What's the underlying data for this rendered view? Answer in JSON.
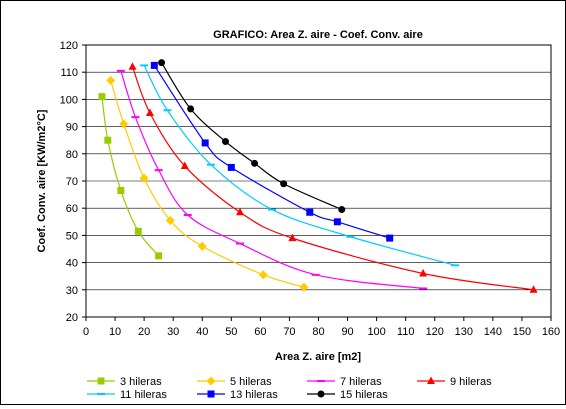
{
  "chart_data": {
    "type": "scatter",
    "title": "GRAFICO: Area Z. aire - Coef. Conv. aire",
    "xlabel": "Area Z. aire [m2]",
    "ylabel": "Coef. Conv. aire [KW/m2°C]",
    "xlim": [
      0,
      160
    ],
    "ylim": [
      20,
      120
    ],
    "xticks": [
      0,
      10,
      20,
      30,
      40,
      50,
      60,
      70,
      80,
      90,
      100,
      110,
      120,
      130,
      140,
      150,
      160
    ],
    "yticks": [
      20,
      30,
      40,
      50,
      60,
      70,
      80,
      90,
      100,
      110,
      120
    ],
    "grid": "horizontal",
    "legend_position": "bottom",
    "series": [
      {
        "name": "3 hileras",
        "color": "#99cc00",
        "marker": "square",
        "points": [
          [
            5.5,
            101
          ],
          [
            7.5,
            85
          ],
          [
            12,
            66.5
          ],
          [
            18,
            51.5
          ],
          [
            25,
            42.5
          ]
        ]
      },
      {
        "name": "5 hileras",
        "color": "#ffcc00",
        "marker": "diamond",
        "points": [
          [
            8.5,
            107
          ],
          [
            13,
            91
          ],
          [
            20,
            71
          ],
          [
            29,
            55.5
          ],
          [
            40,
            46
          ],
          [
            61,
            35.5
          ],
          [
            75,
            31
          ]
        ]
      },
      {
        "name": "7 hileras",
        "color": "#ff00ff",
        "marker": "dash",
        "points": [
          [
            12,
            110.5
          ],
          [
            17,
            93.5
          ],
          [
            25,
            74
          ],
          [
            35,
            57.5
          ],
          [
            53,
            47
          ],
          [
            79,
            35.5
          ],
          [
            116,
            30.5
          ]
        ]
      },
      {
        "name": "9 hileras",
        "color": "#ff0000",
        "marker": "triangle",
        "points": [
          [
            16,
            112
          ],
          [
            22,
            95
          ],
          [
            34,
            75.5
          ],
          [
            53,
            58.5
          ],
          [
            71,
            49
          ],
          [
            116,
            36
          ],
          [
            154,
            30
          ]
        ]
      },
      {
        "name": "11 hileras",
        "color": "#00ccff",
        "marker": "dash",
        "points": [
          [
            20,
            112.5
          ],
          [
            28,
            96
          ],
          [
            43,
            76
          ],
          [
            64,
            59.5
          ],
          [
            91,
            49.5
          ],
          [
            127,
            39
          ]
        ]
      },
      {
        "name": "13 hileras",
        "color": "#0000ff",
        "marker": "square",
        "points": [
          [
            23.5,
            112.5
          ],
          [
            41,
            84
          ],
          [
            50,
            75
          ],
          [
            77,
            58.5
          ],
          [
            86.5,
            55
          ],
          [
            104.5,
            49
          ]
        ]
      },
      {
        "name": "15 hileras",
        "color": "#000000",
        "marker": "circle",
        "points": [
          [
            26,
            113.5
          ],
          [
            36,
            96.5
          ],
          [
            48,
            84.5
          ],
          [
            58,
            76.5
          ],
          [
            68,
            69
          ],
          [
            88,
            59.5
          ]
        ]
      }
    ]
  }
}
